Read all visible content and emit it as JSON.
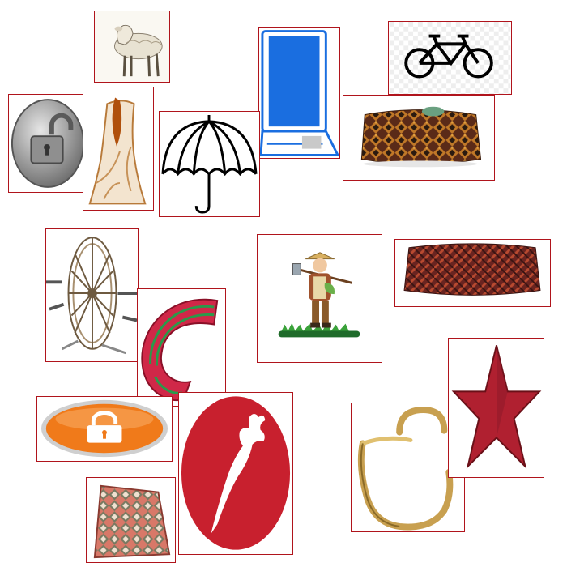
{
  "tiles": [
    {
      "id": "sheep",
      "icon": "sheep-image"
    },
    {
      "id": "laptop",
      "icon": "laptop-icon"
    },
    {
      "id": "bicycle",
      "icon": "bicycle-icon"
    },
    {
      "id": "padlock-silver",
      "icon": "unlocked-padlock-icon"
    },
    {
      "id": "tree-stump",
      "icon": "tree-stump-image"
    },
    {
      "id": "umbrella",
      "icon": "umbrella-icon"
    },
    {
      "id": "headband-patterned",
      "icon": "patterned-headband-image"
    },
    {
      "id": "spinning-wheel",
      "icon": "spinning-wheel-image"
    },
    {
      "id": "farmer",
      "icon": "farmer-illustration"
    },
    {
      "id": "headband-woven",
      "icon": "woven-headband-image"
    },
    {
      "id": "woven-fan",
      "icon": "woven-basket-image"
    },
    {
      "id": "padlock-orange",
      "icon": "orange-unlock-button-icon"
    },
    {
      "id": "rooster-logo",
      "icon": "rooster-logo-icon"
    },
    {
      "id": "padlock-gold",
      "icon": "gold-padlock-image"
    },
    {
      "id": "red-star",
      "icon": "red-star-image"
    },
    {
      "id": "woven-bag",
      "icon": "woven-bag-image"
    }
  ],
  "colors": {
    "border": "#b0141c",
    "orange": "#f07a1a",
    "rooster_red": "#c8202e",
    "laptop_blue": "#1a6ee0",
    "star_red": "#b02030"
  }
}
